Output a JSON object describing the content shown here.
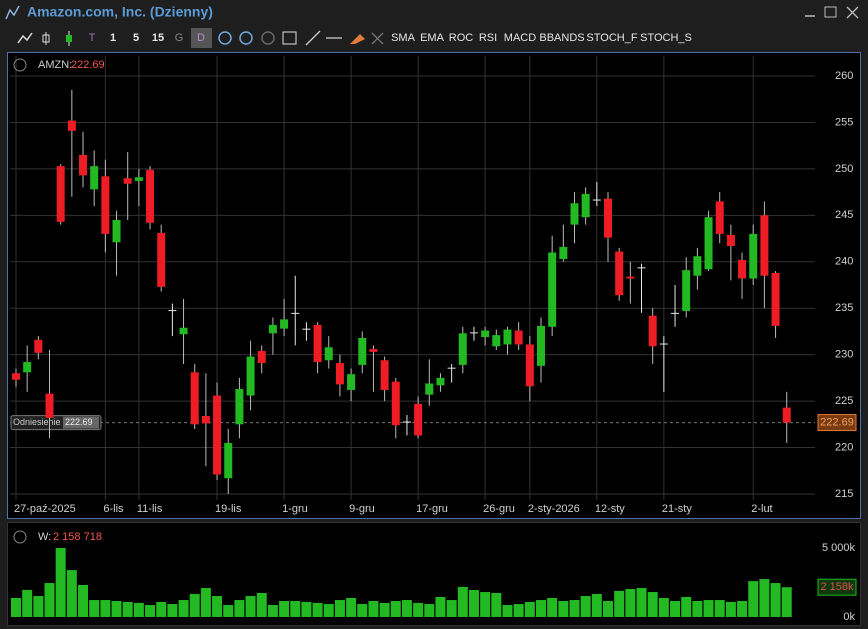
{
  "window": {
    "title": "Amazon.com, Inc. (Dzienny)"
  },
  "toolbar": {
    "buttons": [
      "T",
      "1",
      "5",
      "15",
      "G",
      "D",
      "SMA",
      "EMA",
      "ROC",
      "RSI",
      "MACD",
      "BBANDS",
      "STOCH_F",
      "STOCH_S"
    ]
  },
  "chart_data": [
    {
      "type": "candlestick",
      "label": "AMZN:",
      "current_value": 222.69,
      "reference": {
        "label": "Odniesienie",
        "value": 222.69
      },
      "categories": [
        "27-paź-2025",
        null,
        null,
        null,
        null,
        null,
        null,
        null,
        "6-lis",
        null,
        null,
        "11-lis",
        null,
        null,
        null,
        null,
        null,
        null,
        "19-lis",
        null,
        null,
        null,
        null,
        null,
        "1-gru",
        null,
        null,
        null,
        null,
        null,
        "9-gru",
        null,
        null,
        null,
        null,
        null,
        "17-gru",
        null,
        null,
        null,
        null,
        null,
        "26-gru",
        null,
        null,
        null,
        "2-sty-2026",
        null,
        null,
        null,
        null,
        null,
        "12-sty",
        null,
        null,
        null,
        null,
        null,
        "21-sty",
        null,
        null,
        null,
        null,
        null,
        null,
        null,
        "2-lut",
        null,
        null,
        null
      ],
      "open": [
        228,
        228.1,
        231.6,
        225.8,
        250.3,
        255.2,
        251.5,
        247.8,
        249.2,
        242.1,
        249,
        248.7,
        249.9,
        243.1,
        234.8,
        232.2,
        228.1,
        223.4,
        225.6,
        216.7,
        222.5,
        225.6,
        230.4,
        232.3,
        232.8,
        234.4,
        232.8,
        233.2,
        229.4,
        229.1,
        226.2,
        228.9,
        230.6,
        229.4,
        227.1,
        222.8,
        224.7,
        225.7,
        226.7,
        228.6,
        228.9,
        232.4,
        231.9,
        230.9,
        231.1,
        232.6,
        231.1,
        228.8,
        233,
        240.3,
        244,
        244.8,
        246.7,
        246.8,
        241.1,
        238.4,
        239.4,
        234.2,
        231.2,
        234.5,
        234.7,
        238.5,
        239.2,
        246.5,
        242.9,
        240.2,
        238.2,
        245,
        238.8,
        224.3
      ],
      "high": [
        228.5,
        231,
        232,
        230.5,
        250.5,
        258.5,
        254,
        252,
        251,
        245.5,
        251.8,
        250,
        250.3,
        244,
        235.5,
        236,
        229,
        228,
        227,
        222,
        227.5,
        231.5,
        231,
        234,
        236,
        238.5,
        233.5,
        233.5,
        232,
        230,
        228.5,
        232.5,
        231,
        229.8,
        227.5,
        223.5,
        225.5,
        229.5,
        228,
        229,
        233,
        233,
        233,
        232.7,
        233,
        233.5,
        232,
        234,
        242.8,
        244,
        247.5,
        248,
        248.6,
        247.5,
        241.5,
        240,
        239.8,
        235,
        232,
        237.5,
        240.5,
        241.5,
        245.5,
        247.5,
        244,
        241,
        244,
        246.5,
        239,
        226
      ],
      "low": [
        226.5,
        226,
        229.5,
        221,
        244,
        247,
        248,
        246,
        241,
        238.5,
        244.5,
        246,
        243.5,
        236.8,
        232,
        229,
        222,
        218,
        216.5,
        215,
        221,
        224,
        228,
        230,
        232,
        231,
        231.5,
        228,
        228.5,
        225.5,
        225,
        228,
        226,
        225,
        221,
        221.3,
        221,
        224.5,
        226,
        227,
        228,
        231.5,
        231,
        230.5,
        230,
        230.5,
        225,
        227,
        232,
        240,
        242,
        244,
        246,
        240,
        235.8,
        235.5,
        234.5,
        229,
        226,
        233,
        234,
        237,
        239,
        242,
        238,
        236,
        237.5,
        235,
        231.8,
        220.5
      ],
      "close": [
        227.3,
        229.2,
        230.2,
        223.2,
        244.3,
        254.1,
        249.3,
        250.3,
        243,
        244.5,
        248.4,
        249.1,
        244.2,
        237.3,
        234.7,
        232.9,
        222.5,
        222.6,
        217.1,
        220.5,
        226.3,
        229.8,
        229.1,
        233.2,
        233.8,
        234.5,
        232.7,
        229.2,
        230.8,
        226.8,
        227.9,
        231.8,
        230.3,
        226.2,
        222.4,
        222.7,
        221.3,
        226.9,
        227.5,
        228.5,
        232.3,
        232.3,
        232.6,
        232.1,
        232.7,
        231.1,
        226.6,
        233.1,
        241,
        241.6,
        246.3,
        247.3,
        246.6,
        242.6,
        236.4,
        238.2,
        239.3,
        230.9,
        231.1,
        234.4,
        239.1,
        240.6,
        244.8,
        243,
        241.7,
        238.2,
        243,
        238.5,
        233.1,
        222.69
      ],
      "up_color": "#22b922",
      "down_color": "#ee1c24",
      "doji_color": "#e8e8e8",
      "ylim": [
        215,
        260
      ],
      "yticks": [
        215,
        220,
        225,
        230,
        235,
        240,
        245,
        250,
        255,
        260
      ],
      "grid": true
    },
    {
      "type": "bar",
      "label": "W:",
      "current_value": {
        "value": 2158718,
        "label": "2 158 718"
      },
      "last_marker": {
        "value": 2158.718,
        "label": "2 158k"
      },
      "values": [
        1380,
        1960,
        1520,
        2460,
        5000,
        3400,
        2320,
        1230,
        1230,
        1160,
        1090,
        1020,
        870,
        1090,
        940,
        1230,
        1670,
        2100,
        1520,
        870,
        1230,
        1520,
        1740,
        870,
        1160,
        1160,
        1090,
        1020,
        940,
        1230,
        1380,
        940,
        1160,
        1020,
        1160,
        1230,
        1020,
        940,
        1450,
        1230,
        2180,
        1960,
        1810,
        1740,
        870,
        940,
        1090,
        1230,
        1380,
        1160,
        1230,
        1520,
        1670,
        1160,
        1890,
        2030,
        2100,
        1810,
        1380,
        1160,
        1450,
        1160,
        1230,
        1230,
        1090,
        1160,
        2600,
        2750,
        2460,
        2158.718
      ],
      "color": "#22b922",
      "ylim": [
        0,
        5000
      ],
      "yticks": [
        {
          "value": 0,
          "label": "0k"
        },
        {
          "value": 5000,
          "label": "5 000k"
        }
      ]
    }
  ]
}
